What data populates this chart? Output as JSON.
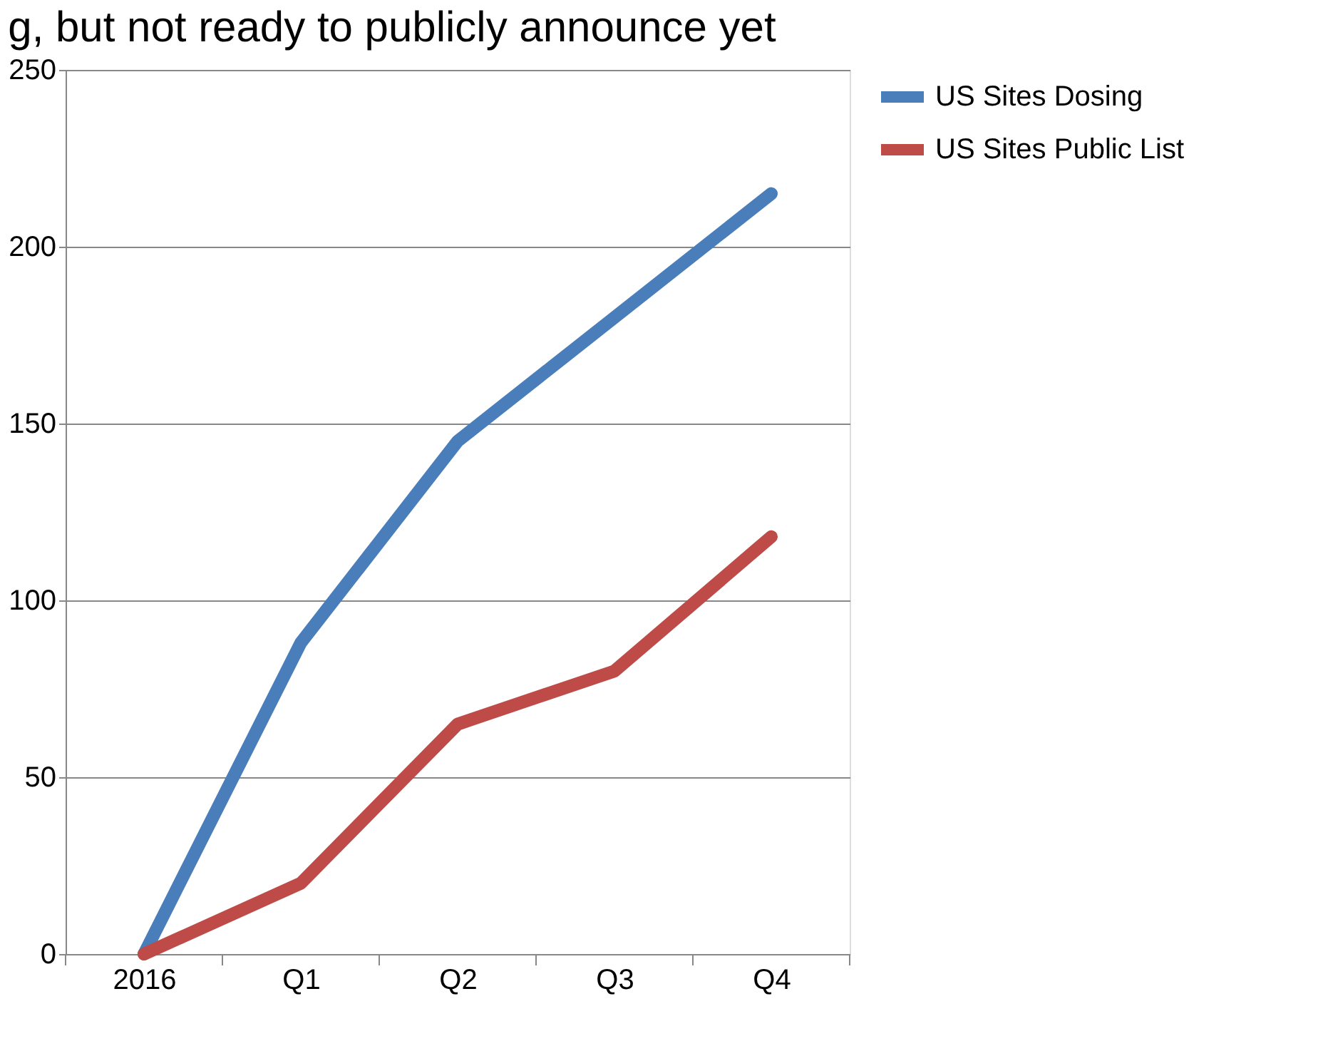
{
  "chart_data": {
    "type": "line",
    "title": "g, but not ready to publicly announce yet",
    "categories": [
      "2016",
      "Q1",
      "Q2",
      "Q3",
      "Q4"
    ],
    "series": [
      {
        "name": "US Sites Dosing",
        "color": "#4a7ebb",
        "values": [
          0,
          88,
          145,
          180,
          215
        ]
      },
      {
        "name": "US Sites Public List",
        "color": "#be4b48",
        "values": [
          0,
          20,
          65,
          80,
          118
        ]
      }
    ],
    "ylim": [
      0,
      250
    ],
    "yticks": [
      0,
      50,
      100,
      150,
      200,
      250
    ],
    "grid": "y",
    "legend": "right",
    "marker": "none",
    "line_style": "solid"
  }
}
